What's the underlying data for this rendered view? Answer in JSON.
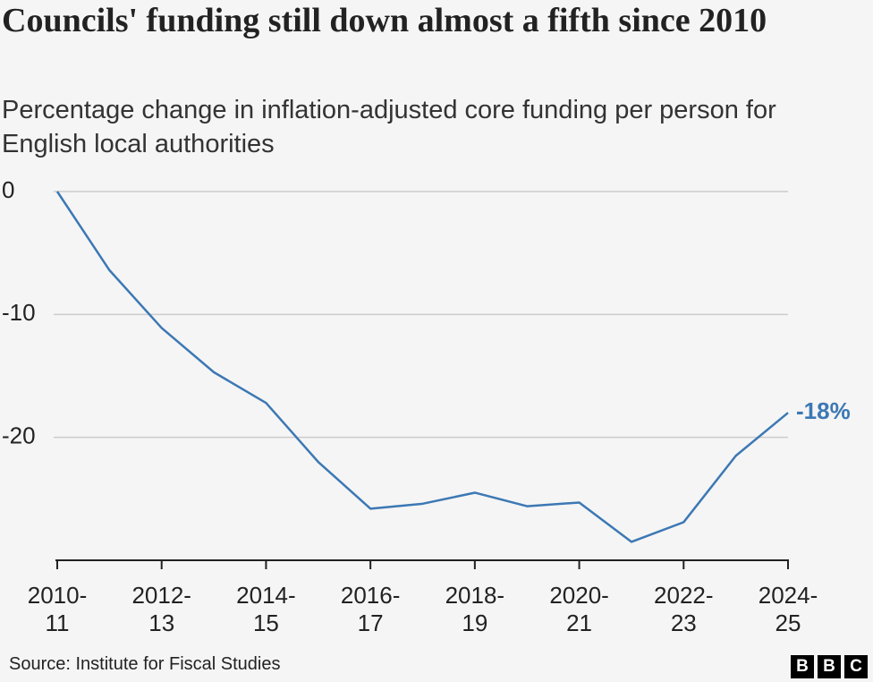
{
  "chart_data": {
    "type": "line",
    "title": "Councils' funding still down almost a fifth since 2010",
    "subtitle": "Percentage change in inflation-adjusted core funding per person for English local authorities",
    "categories": [
      "2010-11",
      null,
      "2012-13",
      null,
      "2014-15",
      null,
      "2016-17",
      null,
      "2018-19",
      null,
      "2020-21",
      null,
      "2022-23",
      null,
      "2024-25"
    ],
    "series": [
      {
        "name": "Core funding per person",
        "color": "#3c78b4",
        "values": [
          0,
          -6.4,
          -11.1,
          -14.7,
          -17.2,
          -22.0,
          -25.8,
          -25.4,
          -24.5,
          -25.6,
          -25.3,
          -28.5,
          -26.9,
          -21.5,
          -18.0
        ],
        "value_labels": [
          null,
          null,
          null,
          null,
          null,
          null,
          null,
          null,
          null,
          null,
          null,
          null,
          null,
          null,
          "-18%"
        ]
      }
    ],
    "ylim": [
      -30,
      0
    ],
    "yticks": [
      0,
      -10,
      -20
    ],
    "grid": true,
    "source": "Source: Institute for Fiscal Studies",
    "logo": [
      "B",
      "B",
      "C"
    ]
  }
}
